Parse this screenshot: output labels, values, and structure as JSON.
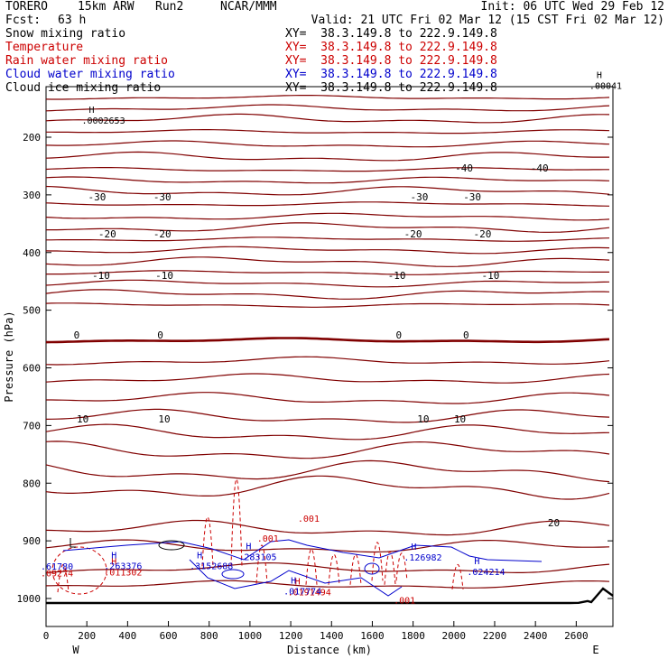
{
  "header": {
    "model": "TORERO",
    "res": "15km ARW",
    "run": "Run2",
    "org": "NCAR/MMM",
    "init": "Init: 06 UTC Wed 29 Feb 12",
    "fcst_label": "Fcst:",
    "fcst_value": "63 h",
    "valid": "Valid: 21 UTC Fri 02 Mar 12 (15 CST Fri 02 Mar 12)"
  },
  "fields": [
    {
      "name": "Snow mixing ratio",
      "color": "#000000",
      "xy": "XY=  38.3.149.8 to 222.9.149.8"
    },
    {
      "name": "Temperature",
      "color": "#cc0000",
      "xy": "XY=  38.3.149.8 to 222.9.149.8"
    },
    {
      "name": "Rain water mixing ratio",
      "color": "#cc0000",
      "xy": "XY=  38.3.149.8 to 222.9.149.8"
    },
    {
      "name": "Cloud water mixing ratio",
      "color": "#0000cc",
      "xy": "XY=  38.3.149.8 to 222.9.149.8"
    },
    {
      "name": "Cloud ice mixing ratio",
      "color": "#000000",
      "xy": "XY=  38.3.149.8 to 222.9.149.8"
    }
  ],
  "chart_data": {
    "type": "line",
    "subtype": "vertical cross-section contour plot",
    "xlabel": "Distance (km)",
    "ylabel": "Pressure (hPa)",
    "xlim": [
      0,
      2780
    ],
    "ylim": [
      1050,
      100
    ],
    "xticks": [
      0,
      200,
      400,
      600,
      800,
      1000,
      1200,
      1400,
      1600,
      1800,
      2000,
      2200,
      2400,
      2600
    ],
    "yticks": [
      200,
      300,
      400,
      500,
      600,
      700,
      800,
      900,
      1000
    ],
    "left_label": "W",
    "right_label": "E",
    "temperature_contours": [
      {
        "label": "-40",
        "x": [
          2050,
          2420
        ],
        "p": 255
      },
      {
        "label": "-30",
        "x": [
          250,
          570,
          1830,
          2090
        ],
        "p": 308
      },
      {
        "label": "-20",
        "x": [
          300,
          570,
          1800,
          2140
        ],
        "p": 366
      },
      {
        "label": "-10",
        "x": [
          270,
          580,
          1720,
          2180
        ],
        "p": 424
      },
      {
        "label": "0",
        "x": [
          150,
          560,
          1730,
          2060
        ],
        "p": 550
      },
      {
        "label": "10",
        "x": [
          180,
          580,
          1850,
          2030
        ],
        "p": 690
      },
      {
        "label": "20",
        "x": [
          2490
        ],
        "p": 880
      }
    ],
    "maxima": [
      {
        "symbol": "H",
        "value": ".0002653",
        "x": 210,
        "p": 170
      },
      {
        "symbol": "H",
        "value": ".00041",
        "x": 2700,
        "p": 110
      },
      {
        "symbol": "H",
        "value": ".011302",
        "x": 320,
        "p": 954
      },
      {
        "symbol": "H",
        "value": ".263376",
        "x": 320,
        "p": 943
      },
      {
        "symbol": "H",
        "value": ".3152688",
        "x": 740,
        "p": 943
      },
      {
        "symbol": "H",
        "value": ".283105",
        "x": 980,
        "p": 927
      },
      {
        "symbol": "H",
        "value": ".0191494",
        "x": 1220,
        "p": 988
      },
      {
        "symbol": "H",
        "value": ".017774",
        "x": 1200,
        "p": 987
      },
      {
        "symbol": "H",
        "value": ".126982",
        "x": 1790,
        "p": 928
      },
      {
        "symbol": "H",
        "value": ".024214",
        "x": 2100,
        "p": 953
      },
      {
        "symbol": "",
        "value": ".001",
        "x": 1070,
        "p": 895
      },
      {
        "symbol": "",
        "value": ".001",
        "x": 1270,
        "p": 861
      },
      {
        "symbol": "",
        "value": ".001",
        "x": 1740,
        "p": 1002
      },
      {
        "symbol": "",
        "value": ".61780",
        "x": 0,
        "p": 944
      },
      {
        "symbol": "",
        "value": ".09274",
        "x": 0,
        "p": 955
      }
    ]
  },
  "colors": {
    "temperature": "#800000",
    "rain": "#cc0000",
    "cloud_water": "#0000cc",
    "snow": "#000000",
    "terrain": "#000000"
  }
}
